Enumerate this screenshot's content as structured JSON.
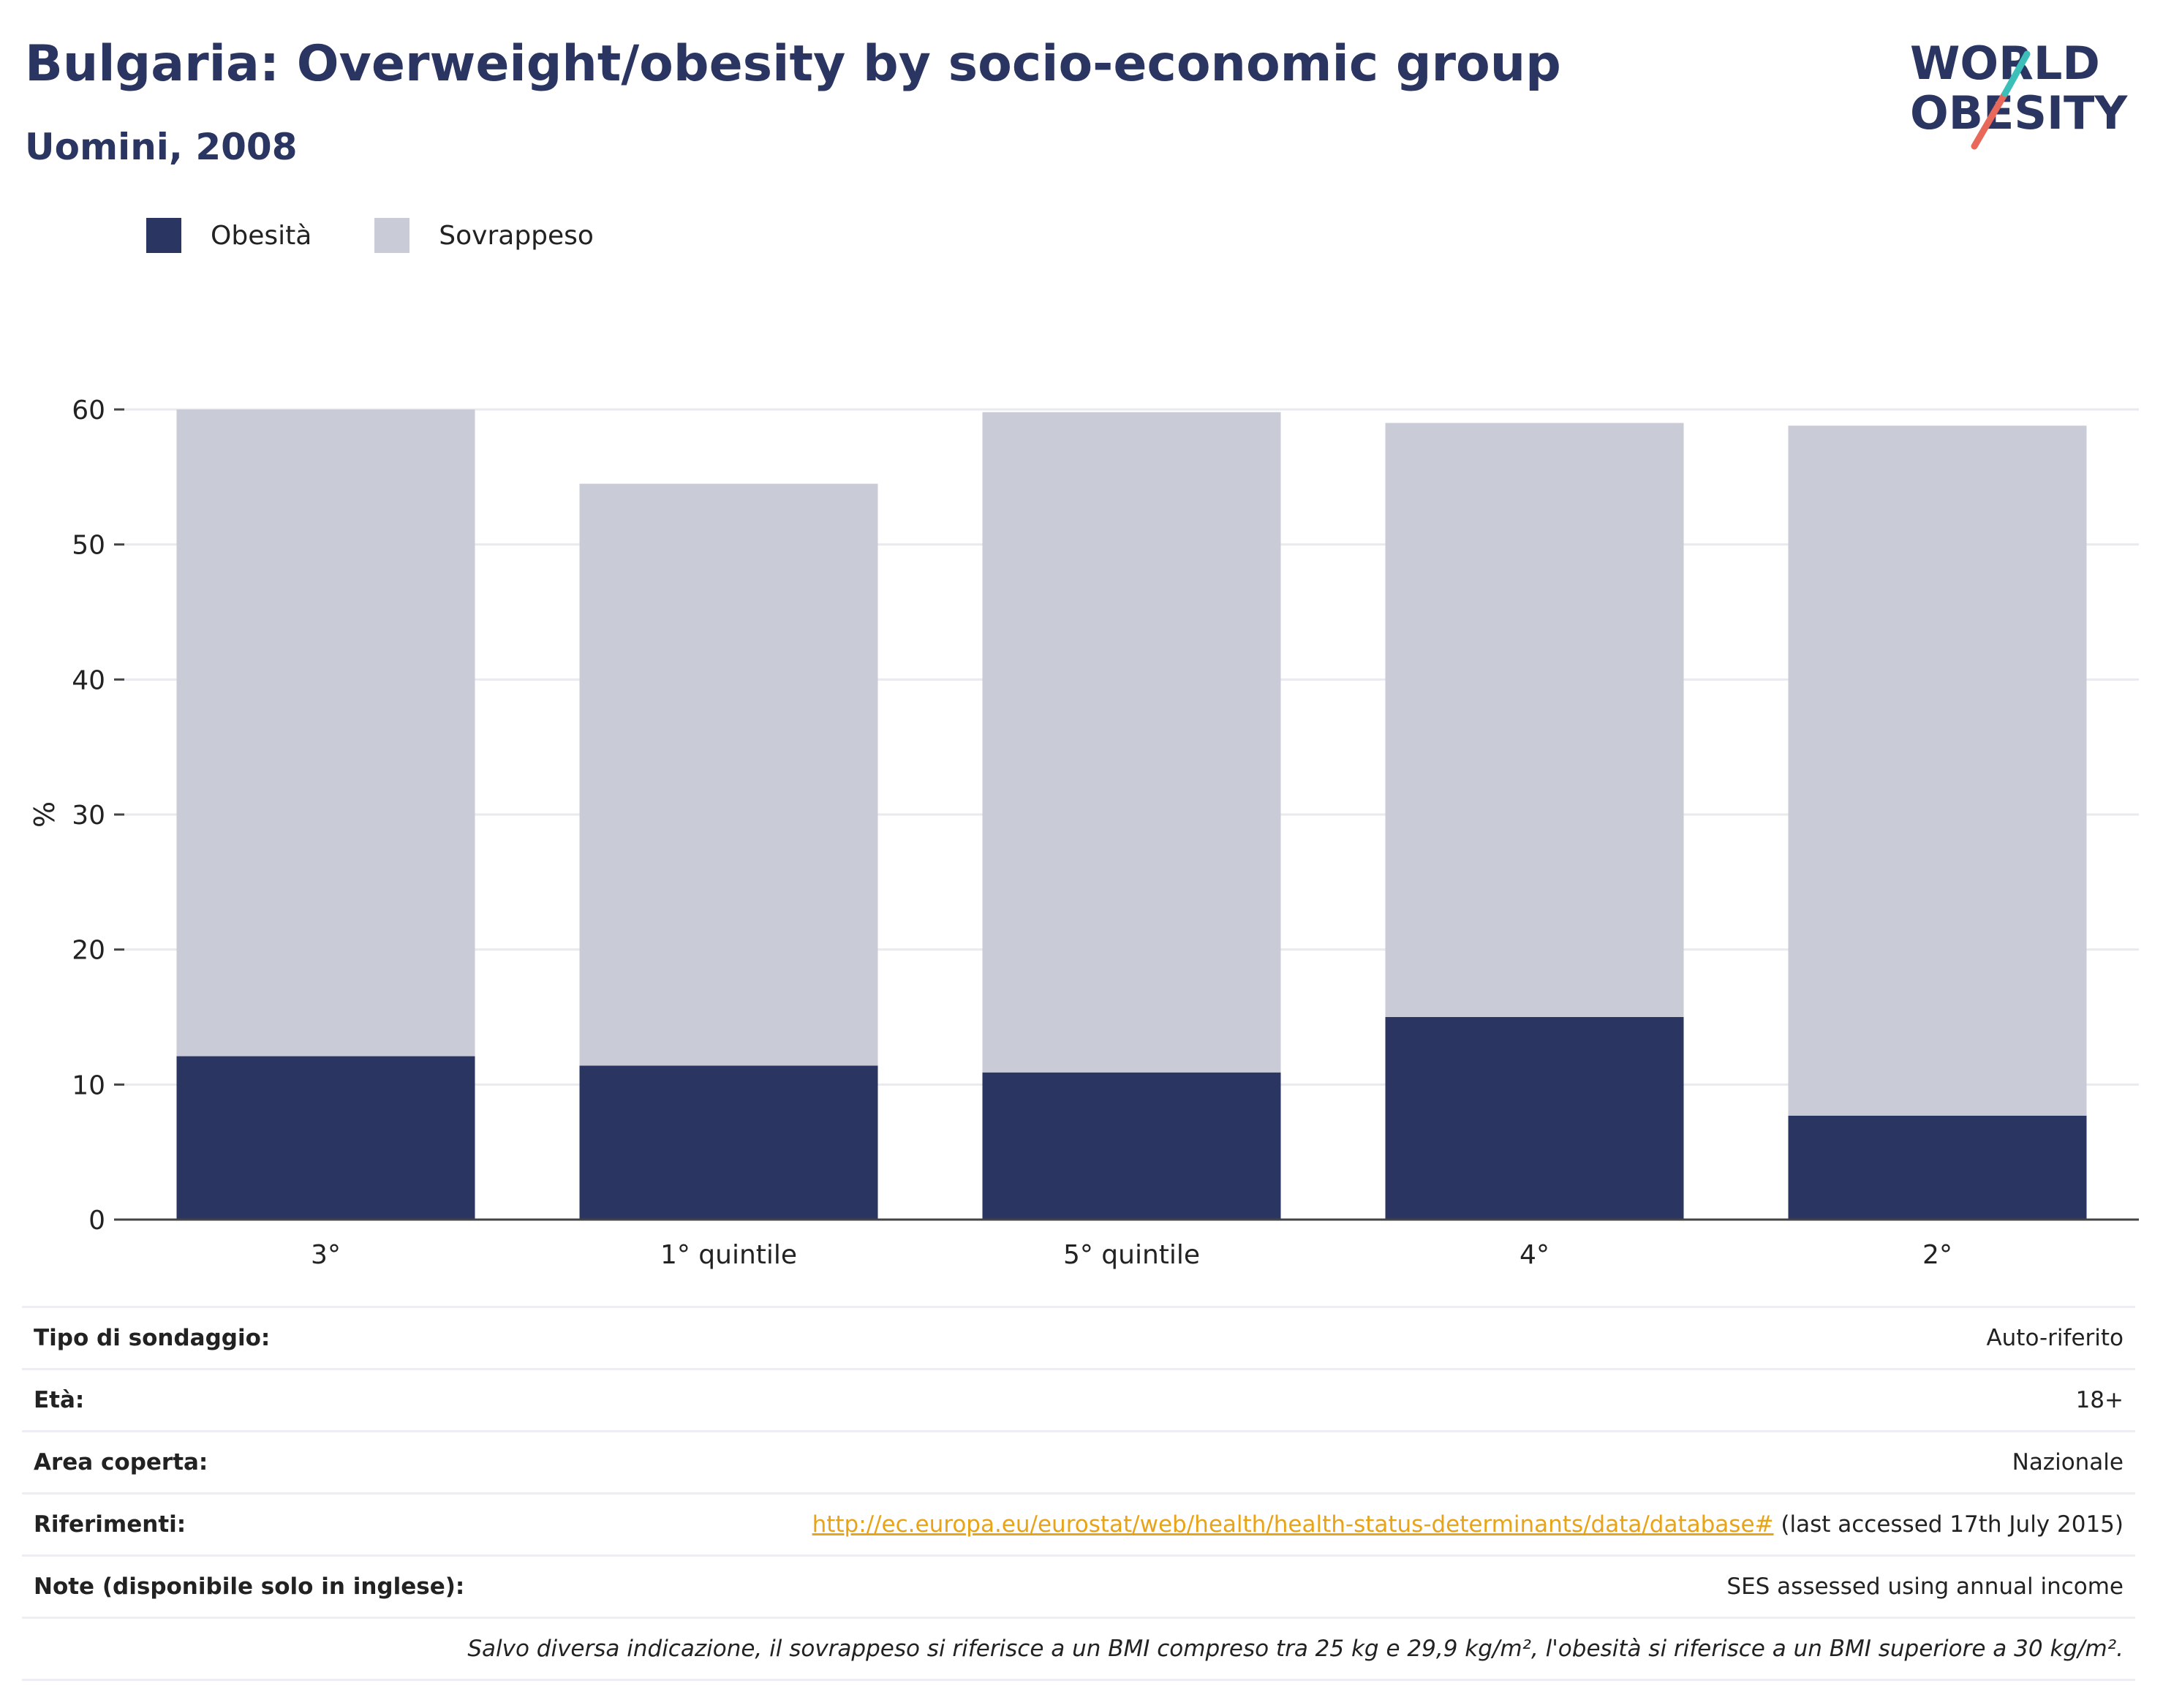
{
  "header": {
    "title": "Bulgaria: Overweight/obesity by socio-economic group",
    "subtitle": "Uomini, 2008"
  },
  "logo": {
    "line1": "WORLD",
    "line2": "OBESITY"
  },
  "colors": {
    "obesity": "#2a3561",
    "overweight": "#c9cbd7",
    "accent_teal": "#3bbfb8",
    "accent_red": "#e8685a",
    "link": "#e8a317"
  },
  "legend": [
    {
      "label": "Obesità",
      "color": "#2a3561"
    },
    {
      "label": "Sovrappeso",
      "color": "#c9cbd7"
    }
  ],
  "chart_data": {
    "type": "bar",
    "stacked": true,
    "categories": [
      "3°",
      "1° quintile",
      "5° quintile",
      "4°",
      "2°"
    ],
    "series": [
      {
        "name": "Obesità",
        "values": [
          12.1,
          11.4,
          10.9,
          15.0,
          7.7
        ]
      },
      {
        "name": "Sovrappeso",
        "values": [
          47.9,
          43.1,
          48.9,
          44.0,
          51.1
        ]
      }
    ],
    "ylabel": "%",
    "ylim": [
      0,
      60
    ],
    "yticks": [
      0,
      10,
      20,
      30,
      40,
      50,
      60
    ],
    "grid": true,
    "legend_position": "top-left"
  },
  "info": {
    "survey_type": {
      "label": "Tipo di sondaggio:",
      "value": "Auto-riferito"
    },
    "age": {
      "label": "Età:",
      "value": "18+"
    },
    "area": {
      "label": "Area coperta:",
      "value": "Nazionale"
    },
    "references": {
      "label": "Riferimenti:",
      "link": "http://ec.europa.eu/eurostat/web/health/health-status-determinants/data/database#",
      "suffix": " (last accessed 17th July 2015)"
    },
    "notes": {
      "label": "Note (disponibile solo in inglese):",
      "value": "SES assessed using annual income"
    },
    "footnote": "Salvo diversa indicazione, il sovrappeso si riferisce a un BMI compreso tra 25 kg e 29,9 kg/m², l'obesità si riferisce a un BMI superiore a 30 kg/m²."
  }
}
